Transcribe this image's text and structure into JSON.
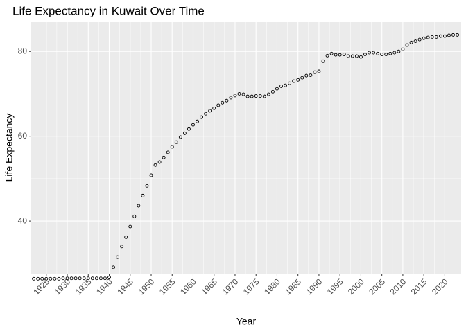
{
  "chart_data": {
    "type": "scatter",
    "title": "Life Expectancy in Kuwait Over Time",
    "x_label": "Year",
    "y_label": "Life Expectancy",
    "x": [
      1922,
      1923,
      1924,
      1925,
      1926,
      1927,
      1928,
      1929,
      1930,
      1931,
      1932,
      1933,
      1934,
      1935,
      1936,
      1937,
      1938,
      1939,
      1940,
      1941,
      1942,
      1943,
      1944,
      1945,
      1946,
      1947,
      1948,
      1949,
      1950,
      1951,
      1952,
      1953,
      1954,
      1955,
      1956,
      1957,
      1958,
      1959,
      1960,
      1961,
      1962,
      1963,
      1964,
      1965,
      1966,
      1967,
      1968,
      1969,
      1970,
      1971,
      1972,
      1973,
      1974,
      1975,
      1976,
      1977,
      1978,
      1979,
      1980,
      1981,
      1982,
      1983,
      1984,
      1985,
      1986,
      1987,
      1988,
      1989,
      1990,
      1991,
      1992,
      1993,
      1994,
      1995,
      1996,
      1997,
      1998,
      1999,
      2000,
      2001,
      2002,
      2003,
      2004,
      2005,
      2006,
      2007,
      2008,
      2009,
      2010,
      2011,
      2012,
      2013,
      2014,
      2015,
      2016,
      2017,
      2018,
      2019,
      2020,
      2021,
      2022,
      2023
    ],
    "values": [
      26.4,
      26.4,
      26.4,
      26.4,
      26.4,
      26.4,
      26.4,
      26.5,
      26.5,
      26.5,
      26.5,
      26.5,
      26.5,
      26.5,
      26.5,
      26.5,
      26.5,
      26.5,
      26.7,
      29.1,
      31.5,
      34.0,
      36.2,
      38.7,
      41.1,
      43.6,
      46.0,
      48.3,
      50.8,
      53.2,
      53.9,
      55.0,
      56.2,
      57.5,
      58.6,
      59.8,
      60.7,
      61.7,
      62.7,
      63.5,
      64.5,
      65.3,
      66.0,
      66.6,
      67.3,
      67.9,
      68.4,
      69.1,
      69.6,
      70.0,
      69.9,
      69.4,
      69.4,
      69.5,
      69.5,
      69.4,
      69.9,
      70.5,
      71.2,
      71.8,
      72.0,
      72.5,
      73.0,
      73.3,
      73.8,
      74.3,
      74.4,
      75.1,
      75.3,
      77.7,
      79.0,
      79.5,
      79.2,
      79.2,
      79.3,
      78.9,
      78.9,
      78.9,
      78.7,
      79.3,
      79.7,
      79.7,
      79.5,
      79.3,
      79.3,
      79.5,
      79.7,
      80.0,
      80.5,
      81.5,
      82.1,
      82.4,
      82.8,
      83.1,
      83.3,
      83.4,
      83.4,
      83.6,
      83.6,
      83.8,
      83.9,
      83.9
    ],
    "xlim": [
      1921.4,
      2023.9
    ],
    "ylim": [
      27.6,
      86.9
    ],
    "xticks": [
      1925,
      1930,
      1935,
      1940,
      1945,
      1950,
      1955,
      1960,
      1965,
      1970,
      1975,
      1980,
      1985,
      1990,
      1995,
      2000,
      2005,
      2010,
      2015,
      2020
    ],
    "yticks": [
      40,
      60,
      80
    ],
    "grid": true
  }
}
